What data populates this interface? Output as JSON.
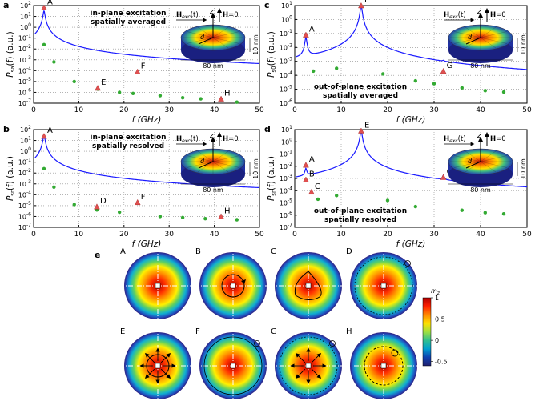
{
  "panels": [
    {
      "id": "a",
      "label": "a",
      "ylabel": "P",
      "ysub": "sa",
      "ytail": "(f) (a.u.)",
      "ymin": -7,
      "ymax": 2,
      "caption": [
        "in-plane excitation",
        "spatially averaged"
      ],
      "caption_pos": "top",
      "peaks": [
        {
          "f": 2.3,
          "p": 1.5
        },
        {
          "f": 23,
          "p": -4.5
        }
      ],
      "bg": {
        "p0": -3.6,
        "p1": -6.5
      },
      "markers": [
        {
          "n": "A",
          "f": 2.3,
          "p": 1.8
        },
        {
          "n": "E",
          "f": 14.2,
          "p": -5.6
        },
        {
          "n": "F",
          "f": 23,
          "p": -4.1
        },
        {
          "n": "H",
          "f": 41.5,
          "p": -6.6
        }
      ],
      "dots": [
        [
          2.3,
          -1.6
        ],
        [
          4.5,
          -3.2
        ],
        [
          9,
          -5.0
        ],
        [
          14.2,
          -5.7
        ],
        [
          19,
          -6.0
        ],
        [
          22,
          -6.1
        ],
        [
          28,
          -6.3
        ],
        [
          33,
          -6.5
        ],
        [
          37,
          -6.6
        ],
        [
          45,
          -6.9
        ]
      ]
    },
    {
      "id": "c",
      "label": "c",
      "ylabel": "P",
      "ysub": "s0",
      "ytail": "(f) (a.u.)",
      "ymin": -6,
      "ymax": 1,
      "caption": [
        "out-of-plane excitation",
        "spatially averaged"
      ],
      "caption_pos": "bottom",
      "peaks": [
        {
          "f": 2.4,
          "p": -1.3
        },
        {
          "f": 14.3,
          "p": 1.0
        },
        {
          "f": 32,
          "p": -3.8
        }
      ],
      "bg": {
        "p0": -3.6,
        "p1": -5.3
      },
      "markers": [
        {
          "n": "A",
          "f": 2.4,
          "p": -1.1
        },
        {
          "n": "E",
          "f": 14.3,
          "p": 1.0
        },
        {
          "n": "G",
          "f": 32,
          "p": -3.7
        }
      ],
      "dots": [
        [
          4,
          -3.7
        ],
        [
          9,
          -3.5
        ],
        [
          19,
          -3.9
        ],
        [
          26,
          -4.4
        ],
        [
          30,
          -4.6
        ],
        [
          36,
          -4.9
        ],
        [
          41,
          -5.1
        ],
        [
          45,
          -5.2
        ]
      ]
    },
    {
      "id": "b",
      "label": "b",
      "ylabel": "P",
      "ysub": "sr",
      "ytail": "(f) (a.u.)",
      "ymin": -7,
      "ymax": 2,
      "caption": [
        "in-plane excitation",
        "spatially resolved"
      ],
      "caption_pos": "top",
      "peaks": [
        {
          "f": 2.3,
          "p": 1.5
        },
        {
          "f": 23,
          "p": -5.4
        }
      ],
      "bg": {
        "p0": -3.6,
        "p1": -6.4
      },
      "markers": [
        {
          "n": "A",
          "f": 2.3,
          "p": 1.4
        },
        {
          "n": "D",
          "f": 14,
          "p": -5.1
        },
        {
          "n": "F",
          "f": 23,
          "p": -4.7
        },
        {
          "n": "H",
          "f": 41.5,
          "p": -6.0
        }
      ],
      "dots": [
        [
          2.3,
          -1.6
        ],
        [
          4.5,
          -3.3
        ],
        [
          9,
          -4.9
        ],
        [
          14,
          -5.4
        ],
        [
          19,
          -5.6
        ],
        [
          28,
          -6.0
        ],
        [
          33,
          -6.1
        ],
        [
          38,
          -6.2
        ],
        [
          45,
          -6.3
        ]
      ]
    },
    {
      "id": "d",
      "label": "d",
      "ylabel": "P",
      "ysub": "sr",
      "ytail": "(f) (a.u.)",
      "ymin": -7,
      "ymax": 1,
      "caption": [
        "out-of-plane excitation",
        "spatially resolved"
      ],
      "caption_pos": "bottom",
      "peaks": [
        {
          "f": 2.4,
          "p": -2.3
        },
        {
          "f": 3.5,
          "p": -3.5
        },
        {
          "f": 14.3,
          "p": 0.9
        },
        {
          "f": 32,
          "p": -3.0
        }
      ],
      "bg": {
        "p0": -4.7,
        "p1": -6.1
      },
      "markers": [
        {
          "n": "A",
          "f": 2.4,
          "p": -1.9
        },
        {
          "n": "B",
          "f": 2.4,
          "p": -3.1
        },
        {
          "n": "C",
          "f": 3.6,
          "p": -4.1
        },
        {
          "n": "E",
          "f": 14.3,
          "p": 0.9
        },
        {
          "n": "G",
          "f": 32,
          "p": -2.9
        }
      ],
      "dots": [
        [
          5,
          -4.7
        ],
        [
          9,
          -4.4
        ],
        [
          20,
          -4.8
        ],
        [
          26,
          -5.3
        ],
        [
          36,
          -5.6
        ],
        [
          41,
          -5.8
        ],
        [
          45,
          -5.9
        ]
      ]
    }
  ],
  "axis": {
    "xlabel": "f (GHz)",
    "xticks": [
      "0",
      "10",
      "20",
      "30",
      "40",
      "50"
    ],
    "xmax": 50
  },
  "inset": {
    "field": "H",
    "field_sub": "exc",
    "field_arg": "(t)",
    "z": "z",
    "h_label": "H",
    "h_value": "=0",
    "d_label": "d",
    "width": "80 nm",
    "height": "10 nm"
  },
  "modes": {
    "label": "e",
    "items": [
      {
        "name": "A",
        "style": "dot"
      },
      {
        "name": "B",
        "style": "ring-dot"
      },
      {
        "name": "C",
        "style": "tri"
      },
      {
        "name": "D",
        "style": "ring-out"
      },
      {
        "name": "E",
        "style": "cross"
      },
      {
        "name": "F",
        "style": "outer"
      },
      {
        "name": "G",
        "style": "cross-out"
      },
      {
        "name": "H",
        "style": "dashed"
      }
    ]
  },
  "colorbar": {
    "title": "m",
    "title_sub": "z",
    "ticks": [
      "1",
      "0.5",
      "0",
      "-0.5"
    ],
    "stops": [
      "#b00000",
      "#ff2000",
      "#ff8800",
      "#ffe000",
      "#a0e040",
      "#30c090",
      "#00a0d0",
      "#1040b0",
      "#202070"
    ]
  },
  "colors": {
    "curve": "#1a1aff",
    "dot": "#33aa33",
    "marker": "#e05050"
  }
}
